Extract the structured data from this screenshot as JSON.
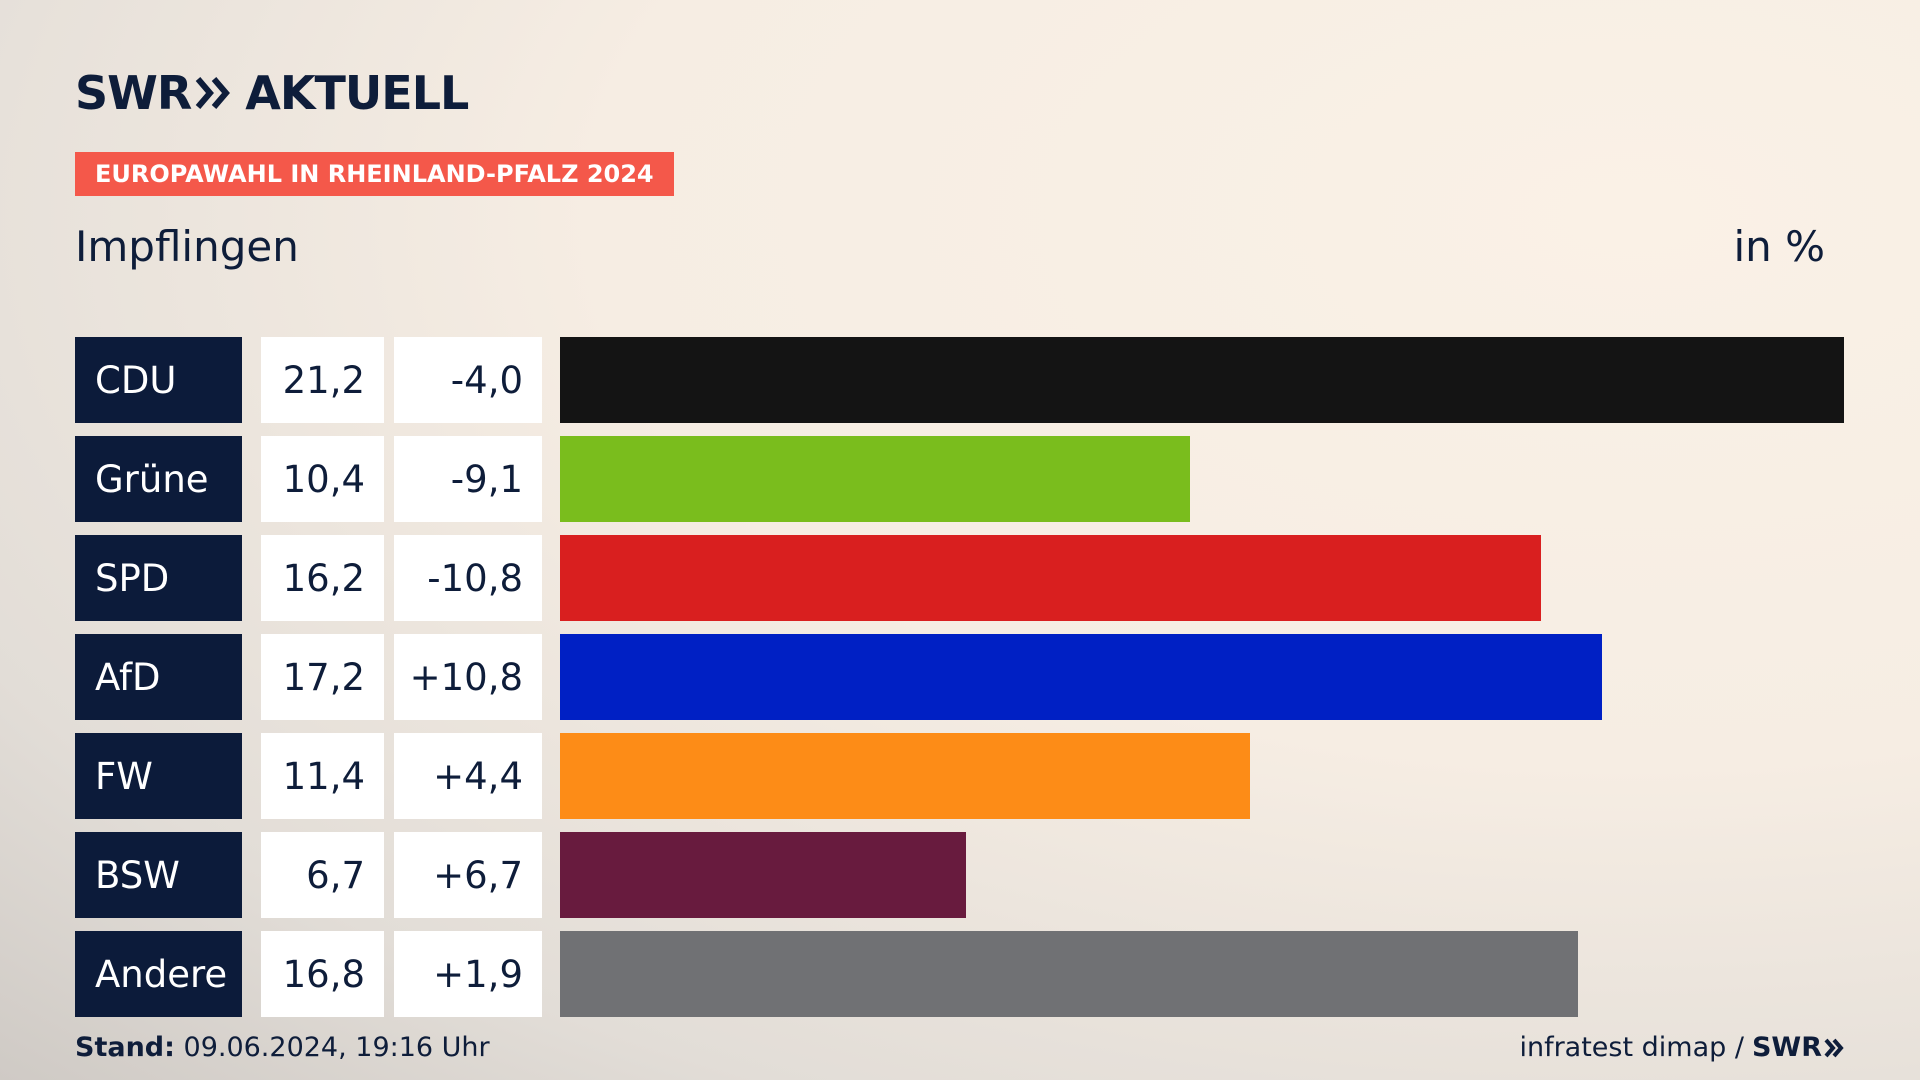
{
  "header": {
    "logo_left": "SWR",
    "logo_right": "AKTUELL",
    "badge": "EUROPAWAHL IN RHEINLAND-PFALZ 2024",
    "region": "Impflingen",
    "unit": "in %"
  },
  "colors": {
    "navy": "#0c1b3a",
    "badge": "#f4584a"
  },
  "chart_data": {
    "type": "bar",
    "title": "Impflingen",
    "ylabel": "in %",
    "categories": [
      "CDU",
      "Grüne",
      "SPD",
      "AfD",
      "FW",
      "BSW",
      "Andere"
    ],
    "values": [
      21.2,
      10.4,
      16.2,
      17.2,
      11.4,
      6.7,
      16.8
    ],
    "value_labels": [
      "21,2",
      "10,4",
      "16,2",
      "17,2",
      "11,4",
      "6,7",
      "16,8"
    ],
    "change_labels": [
      "-4,0",
      "-9,1",
      "-10,8",
      "+10,8",
      "+4,4",
      "+6,7",
      "+1,9"
    ],
    "changes": [
      -4.0,
      -9.1,
      -10.8,
      10.8,
      4.4,
      6.7,
      1.9
    ],
    "colors": [
      "#141414",
      "#7abd1d",
      "#d91f1f",
      "#0020c4",
      "#fd8c17",
      "#681b3e",
      "#707174"
    ],
    "ylim": [
      0,
      21.2
    ]
  },
  "footer": {
    "stand_label": "Stand:",
    "stand_value": "09.06.2024, 19:16 Uhr",
    "source": "infratest dimap /",
    "source_logo": "SWR"
  }
}
